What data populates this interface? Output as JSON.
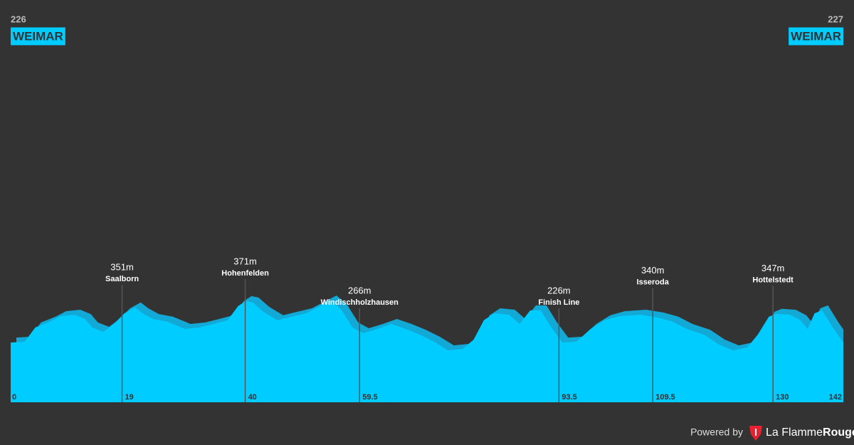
{
  "chart_data": {
    "type": "area",
    "start": {
      "elevation": 226,
      "name": "WEIMAR"
    },
    "finish": {
      "elevation": 227,
      "name": "WEIMAR"
    },
    "x": [
      0,
      2.4,
      4.2,
      6.7,
      8.5,
      10.9,
      12.7,
      13.9,
      15.8,
      17.6,
      19.4,
      21.2,
      22.5,
      24.3,
      26.7,
      29.7,
      32.2,
      34.6,
      37.0,
      38.8,
      40.1,
      41.3,
      43.1,
      45.5,
      47.9,
      50.4,
      52.8,
      54.6,
      56.4,
      58.3,
      60.1,
      62.5,
      64.9,
      67.4,
      69.8,
      72.2,
      74.6,
      77.1,
      78.9,
      80.7,
      82.5,
      85.0,
      86.8,
      88.6,
      90.4,
      92.2,
      94.1,
      96.5,
      98.9,
      101.3,
      103.8,
      107.4,
      110.4,
      112.9,
      115.3,
      118.3,
      120.8,
      123.2,
      125.6,
      127.4,
      129.3,
      130.5,
      132.9,
      134.7,
      135.9,
      137.1,
      138.4,
      140.2,
      142
    ],
    "values": [
      226,
      229,
      278,
      298,
      317,
      322,
      307,
      278,
      263,
      290,
      327,
      347,
      327,
      307,
      298,
      273,
      278,
      290,
      303,
      352,
      369,
      364,
      332,
      303,
      315,
      327,
      352,
      371,
      339,
      278,
      258,
      273,
      290,
      273,
      253,
      229,
      199,
      204,
      234,
      303,
      327,
      322,
      290,
      337,
      337,
      278,
      226,
      229,
      273,
      303,
      317,
      322,
      312,
      298,
      273,
      253,
      219,
      199,
      209,
      253,
      315,
      325,
      322,
      303,
      273,
      327,
      337,
      278,
      226
    ],
    "color": "#00ccff",
    "shade_color": "#12a9d6",
    "xlim": [
      0,
      142
    ],
    "ylim": [
      20,
      700
    ],
    "xticks": [
      0,
      142
    ],
    "markers": [
      {
        "x": 19,
        "value": 351,
        "value_label": "351m",
        "name": "Saalborn"
      },
      {
        "x": 40,
        "value": 371,
        "value_label": "371m",
        "name": "Hohenfelden"
      },
      {
        "x": 59.5,
        "value": 266,
        "value_label": "266m",
        "name": "Windischholzhausen"
      },
      {
        "x": 93.5,
        "value": 226,
        "value_label": "226m",
        "name": "Finish Line"
      },
      {
        "x": 109.5,
        "value": 340,
        "value_label": "340m",
        "name": "Isseroda"
      },
      {
        "x": 130,
        "value": 347,
        "value_label": "347m",
        "name": "Hottelstedt"
      }
    ]
  },
  "footer": {
    "powered_by": "Powered by",
    "brand_prefix": "La Flamme",
    "brand_suffix": "Rouge"
  }
}
